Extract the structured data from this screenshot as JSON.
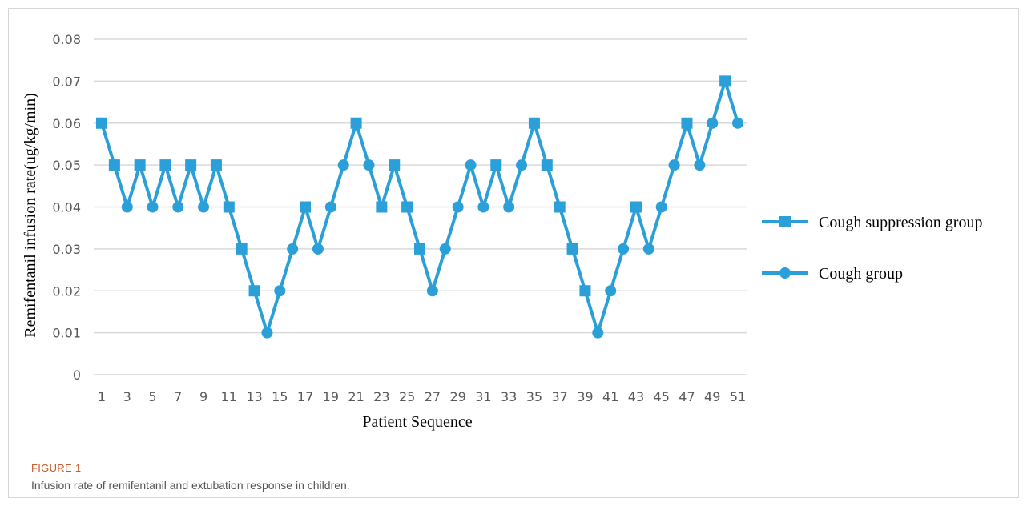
{
  "figure": {
    "label": "FIGURE 1",
    "caption": "Infusion rate of remifentanil and extubation response in children."
  },
  "colors": {
    "series": "#2b9fd8",
    "grid": "#d9d9d9",
    "label": "#c85a2a"
  },
  "chart_data": {
    "type": "line",
    "title": "",
    "xlabel": "Patient Sequence",
    "ylabel": "Remifentanil infusion rate(ug/kg/min)",
    "ylim": [
      0,
      0.08
    ],
    "y_ticks": [
      "0",
      "0.01",
      "0.02",
      "0.03",
      "0.04",
      "0.05",
      "0.06",
      "0.07",
      "0.08"
    ],
    "x_ticks": [
      "1",
      "3",
      "5",
      "7",
      "9",
      "11",
      "13",
      "15",
      "17",
      "19",
      "21",
      "23",
      "25",
      "27",
      "29",
      "31",
      "33",
      "35",
      "37",
      "39",
      "41",
      "43",
      "45",
      "47",
      "49",
      "51"
    ],
    "grid": true,
    "legend_position": "right",
    "x": [
      1,
      2,
      3,
      4,
      5,
      6,
      7,
      8,
      9,
      10,
      11,
      12,
      13,
      14,
      15,
      16,
      17,
      18,
      19,
      20,
      21,
      22,
      23,
      24,
      25,
      26,
      27,
      28,
      29,
      30,
      31,
      32,
      33,
      34,
      35,
      36,
      37,
      38,
      39,
      40,
      41,
      42,
      43,
      44,
      45,
      46,
      47,
      48,
      49,
      50,
      51
    ],
    "series": [
      {
        "name": "Cough suppression group",
        "marker": "square",
        "points": [
          [
            1,
            0.06
          ],
          [
            2,
            0.05
          ],
          [
            4,
            0.05
          ],
          [
            6,
            0.05
          ],
          [
            8,
            0.05
          ],
          [
            10,
            0.05
          ],
          [
            11,
            0.04
          ],
          [
            12,
            0.03
          ],
          [
            13,
            0.02
          ],
          [
            17,
            0.04
          ],
          [
            21,
            0.06
          ],
          [
            23,
            0.04
          ],
          [
            24,
            0.05
          ],
          [
            25,
            0.04
          ],
          [
            26,
            0.03
          ],
          [
            32,
            0.05
          ],
          [
            35,
            0.06
          ],
          [
            36,
            0.05
          ],
          [
            37,
            0.04
          ],
          [
            38,
            0.03
          ],
          [
            39,
            0.02
          ],
          [
            43,
            0.04
          ],
          [
            47,
            0.06
          ],
          [
            50,
            0.07
          ]
        ]
      },
      {
        "name": "Cough group",
        "marker": "circle",
        "points": [
          [
            3,
            0.04
          ],
          [
            5,
            0.04
          ],
          [
            7,
            0.04
          ],
          [
            9,
            0.04
          ],
          [
            14,
            0.01
          ],
          [
            15,
            0.02
          ],
          [
            16,
            0.03
          ],
          [
            18,
            0.03
          ],
          [
            19,
            0.04
          ],
          [
            20,
            0.05
          ],
          [
            22,
            0.05
          ],
          [
            27,
            0.02
          ],
          [
            28,
            0.03
          ],
          [
            29,
            0.04
          ],
          [
            30,
            0.05
          ],
          [
            31,
            0.04
          ],
          [
            33,
            0.04
          ],
          [
            34,
            0.05
          ],
          [
            40,
            0.01
          ],
          [
            41,
            0.02
          ],
          [
            42,
            0.03
          ],
          [
            44,
            0.03
          ],
          [
            45,
            0.04
          ],
          [
            46,
            0.05
          ],
          [
            48,
            0.05
          ],
          [
            49,
            0.06
          ],
          [
            51,
            0.06
          ]
        ]
      }
    ]
  }
}
